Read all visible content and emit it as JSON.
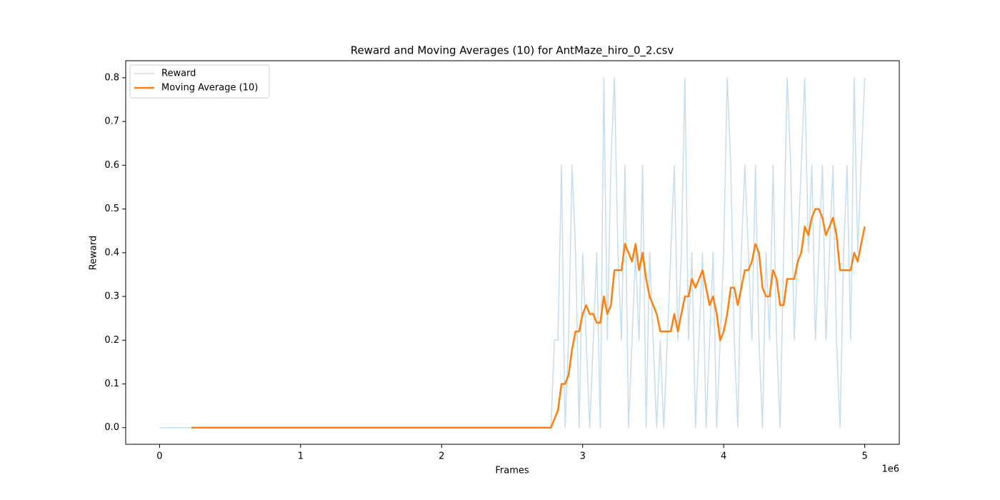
{
  "chart_data": {
    "type": "line",
    "title": "Reward and Moving Averages (10) for AntMaze_hiro_0_2.csv",
    "x_label": "Frames",
    "y_label": "Reward",
    "x_offset_label": "1e6",
    "x": [
      0,
      25000,
      50000,
      75000,
      100000,
      125000,
      150000,
      175000,
      200000,
      225000,
      250000,
      275000,
      300000,
      325000,
      350000,
      375000,
      400000,
      425000,
      450000,
      475000,
      500000,
      525000,
      550000,
      575000,
      600000,
      625000,
      650000,
      675000,
      700000,
      725000,
      750000,
      775000,
      800000,
      825000,
      850000,
      875000,
      900000,
      925000,
      950000,
      975000,
      1000000,
      1025000,
      1050000,
      1075000,
      1100000,
      1125000,
      1150000,
      1175000,
      1200000,
      1225000,
      1250000,
      1275000,
      1300000,
      1325000,
      1350000,
      1375000,
      1400000,
      1425000,
      1450000,
      1475000,
      1500000,
      1525000,
      1550000,
      1575000,
      1600000,
      1625000,
      1650000,
      1675000,
      1700000,
      1725000,
      1750000,
      1775000,
      1800000,
      1825000,
      1850000,
      1875000,
      1900000,
      1925000,
      1950000,
      1975000,
      2000000,
      2025000,
      2050000,
      2075000,
      2100000,
      2125000,
      2150000,
      2175000,
      2200000,
      2225000,
      2250000,
      2275000,
      2300000,
      2325000,
      2350000,
      2375000,
      2400000,
      2425000,
      2450000,
      2475000,
      2500000,
      2525000,
      2550000,
      2575000,
      2600000,
      2625000,
      2650000,
      2675000,
      2700000,
      2725000,
      2750000,
      2775000,
      2800000,
      2825000,
      2850000,
      2875000,
      2900000,
      2925000,
      2950000,
      2975000,
      3000000,
      3025000,
      3050000,
      3075000,
      3100000,
      3125000,
      3150000,
      3175000,
      3200000,
      3225000,
      3250000,
      3275000,
      3300000,
      3325000,
      3350000,
      3375000,
      3400000,
      3425000,
      3450000,
      3475000,
      3500000,
      3525000,
      3550000,
      3575000,
      3600000,
      3625000,
      3650000,
      3675000,
      3700000,
      3725000,
      3750000,
      3775000,
      3800000,
      3825000,
      3850000,
      3875000,
      3900000,
      3925000,
      3950000,
      3975000,
      4000000,
      4025000,
      4050000,
      4075000,
      4100000,
      4125000,
      4150000,
      4175000,
      4200000,
      4225000,
      4250000,
      4275000,
      4300000,
      4325000,
      4350000,
      4375000,
      4400000,
      4425000,
      4450000,
      4475000,
      4500000,
      4525000,
      4550000,
      4575000,
      4600000,
      4625000,
      4650000,
      4675000,
      4700000,
      4725000,
      4750000,
      4775000,
      4800000,
      4825000,
      4850000,
      4875000,
      4900000,
      4925000,
      4950000,
      4975000,
      5000000
    ],
    "series": [
      {
        "name": "Reward",
        "color": "#1f77b4",
        "alpha": 0.25,
        "width": 1.5,
        "values": [
          0,
          0,
          0,
          0,
          0,
          0,
          0,
          0,
          0,
          0,
          0,
          0,
          0,
          0,
          0,
          0,
          0,
          0,
          0,
          0,
          0,
          0,
          0,
          0,
          0,
          0,
          0,
          0,
          0,
          0,
          0,
          0,
          0,
          0,
          0,
          0,
          0,
          0,
          0,
          0,
          0,
          0,
          0,
          0,
          0,
          0,
          0,
          0,
          0,
          0,
          0,
          0,
          0,
          0,
          0,
          0,
          0,
          0,
          0,
          0,
          0,
          0,
          0,
          0,
          0,
          0,
          0,
          0,
          0,
          0,
          0,
          0,
          0,
          0,
          0,
          0,
          0,
          0,
          0,
          0,
          0,
          0,
          0,
          0,
          0,
          0,
          0,
          0,
          0,
          0,
          0,
          0,
          0,
          0,
          0,
          0,
          0,
          0,
          0,
          0,
          0,
          0,
          0,
          0,
          0,
          0,
          0,
          0,
          0,
          0,
          0,
          0,
          0.2,
          0.2,
          0.6,
          0,
          0.2,
          0.6,
          0.4,
          0,
          0.4,
          0.2,
          0,
          0.2,
          0.4,
          0,
          0.8,
          0.2,
          0.6,
          0.8,
          0.4,
          0.2,
          0.6,
          0,
          0.2,
          0.4,
          0.2,
          0.6,
          0,
          0.4,
          0.2,
          0,
          0.2,
          0,
          0.2,
          0.4,
          0.6,
          0.2,
          0.4,
          0.8,
          0.2,
          0.4,
          0,
          0.2,
          0.4,
          0,
          0.2,
          0.4,
          0,
          0.2,
          0.4,
          0.8,
          0.6,
          0.2,
          0,
          0.4,
          0.6,
          0.4,
          0.2,
          0.6,
          0.2,
          0,
          0.4,
          0.2,
          0.6,
          0.2,
          0,
          0.4,
          0.8,
          0.6,
          0.2,
          0.4,
          0.6,
          0.8,
          0.4,
          0.6,
          0.2,
          0.4,
          0.6,
          0.2,
          0.4,
          0.6,
          0.2,
          0,
          0.4,
          0.6,
          0.2,
          0.8,
          0.4,
          0.6,
          0.8
        ]
      },
      {
        "name": "Moving Average (10)",
        "color": "#ff7f0e",
        "alpha": 1,
        "width": 2.5,
        "values": [
          null,
          null,
          null,
          null,
          null,
          null,
          null,
          null,
          null,
          0,
          0,
          0,
          0,
          0,
          0,
          0,
          0,
          0,
          0,
          0,
          0,
          0,
          0,
          0,
          0,
          0,
          0,
          0,
          0,
          0,
          0,
          0,
          0,
          0,
          0,
          0,
          0,
          0,
          0,
          0,
          0,
          0,
          0,
          0,
          0,
          0,
          0,
          0,
          0,
          0,
          0,
          0,
          0,
          0,
          0,
          0,
          0,
          0,
          0,
          0,
          0,
          0,
          0,
          0,
          0,
          0,
          0,
          0,
          0,
          0,
          0,
          0,
          0,
          0,
          0,
          0,
          0,
          0,
          0,
          0,
          0,
          0,
          0,
          0,
          0,
          0,
          0,
          0,
          0,
          0,
          0,
          0,
          0,
          0,
          0,
          0,
          0,
          0,
          0,
          0,
          0,
          0,
          0,
          0,
          0,
          0,
          0,
          0,
          0,
          0,
          0,
          0,
          0.02,
          0.04,
          0.1,
          0.1,
          0.12,
          0.18,
          0.22,
          0.22,
          0.26,
          0.28,
          0.26,
          0.26,
          0.24,
          0.24,
          0.3,
          0.26,
          0.28,
          0.36,
          0.36,
          0.36,
          0.42,
          0.4,
          0.38,
          0.42,
          0.36,
          0.4,
          0.34,
          0.3,
          0.28,
          0.26,
          0.22,
          0.22,
          0.22,
          0.22,
          0.26,
          0.22,
          0.26,
          0.3,
          0.3,
          0.34,
          0.32,
          0.34,
          0.36,
          0.32,
          0.28,
          0.3,
          0.26,
          0.2,
          0.22,
          0.26,
          0.32,
          0.32,
          0.28,
          0.32,
          0.36,
          0.36,
          0.38,
          0.42,
          0.4,
          0.32,
          0.3,
          0.3,
          0.36,
          0.34,
          0.28,
          0.28,
          0.34,
          0.34,
          0.34,
          0.38,
          0.4,
          0.46,
          0.44,
          0.48,
          0.5,
          0.5,
          0.48,
          0.44,
          0.46,
          0.48,
          0.44,
          0.36,
          0.36,
          0.36,
          0.36,
          0.4,
          0.38,
          0.42,
          0.46
        ]
      }
    ],
    "xlim": [
      -240000,
      5245000
    ],
    "ylim": [
      -0.038,
      0.839
    ],
    "xticks": [
      0,
      {
        "value": 1000000,
        "label": "1"
      },
      {
        "value": 2000000,
        "label": "2"
      },
      {
        "value": 3000000,
        "label": "3"
      },
      {
        "value": 4000000,
        "label": "4"
      },
      {
        "value": 5000000,
        "label": "5"
      }
    ],
    "yticks": [
      {
        "value": 0,
        "label": "0.0"
      },
      0.1,
      0.2,
      0.3,
      0.4,
      0.5,
      0.6,
      0.7,
      0.8
    ],
    "grid": false,
    "legend": "upper left"
  }
}
